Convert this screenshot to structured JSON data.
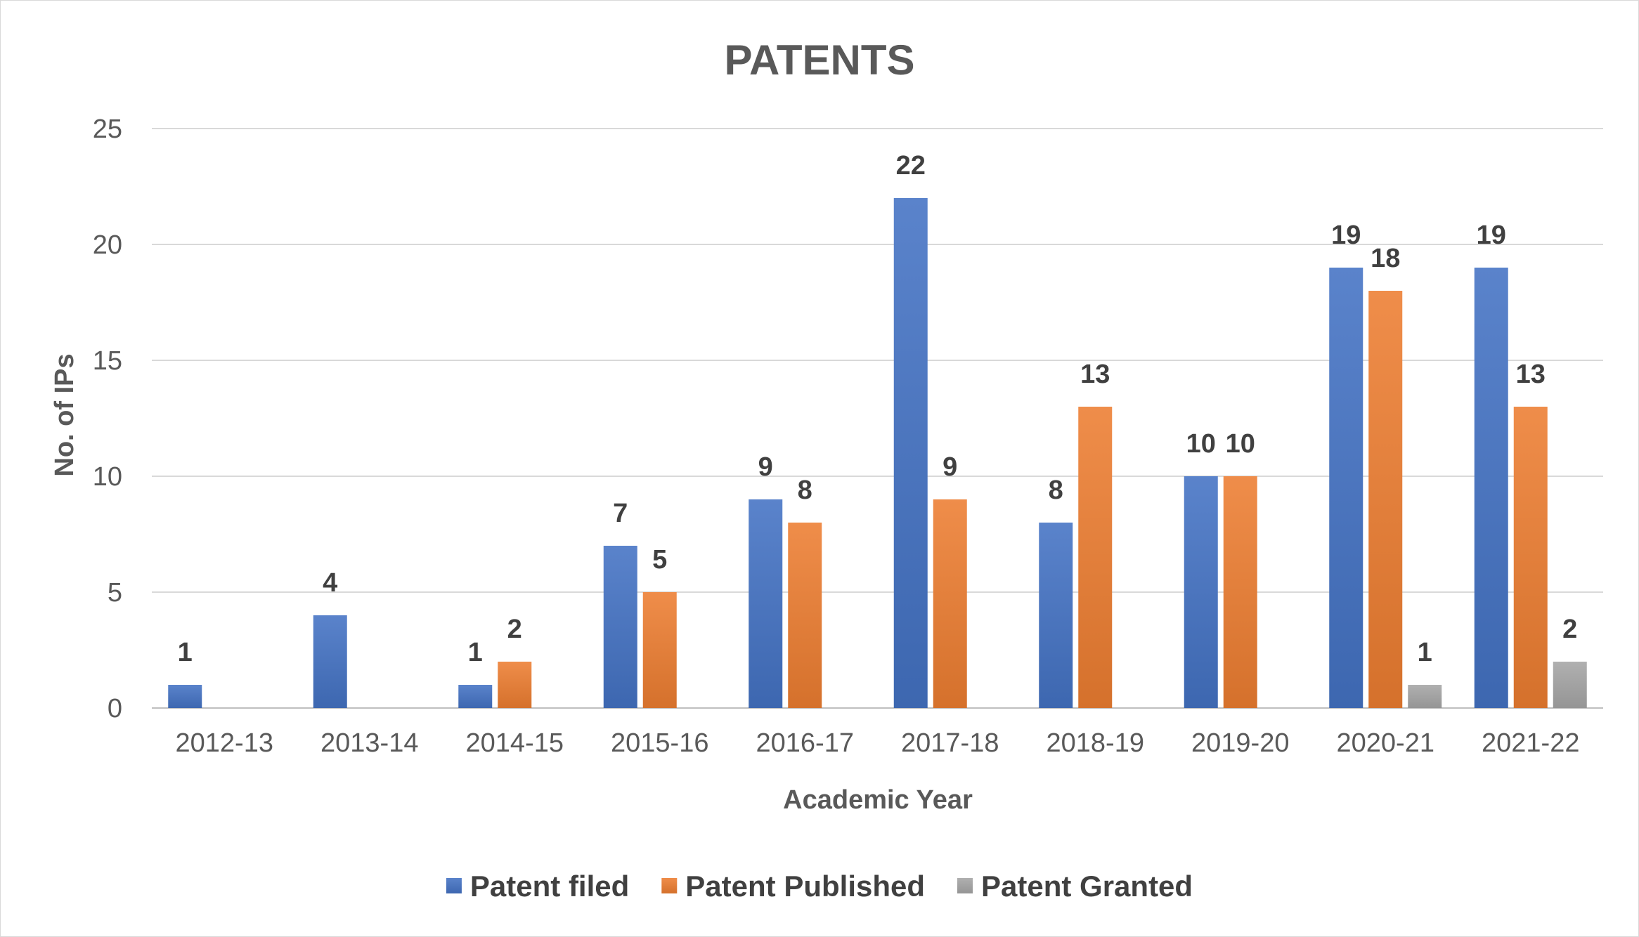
{
  "chart_data": {
    "type": "bar",
    "title": "PATENTS",
    "xlabel": "Academic Year",
    "ylabel": "No. of IPs",
    "ylim": [
      0,
      25
    ],
    "yticks": [
      0,
      5,
      10,
      15,
      20,
      25
    ],
    "grid": true,
    "legend_position": "bottom",
    "categories": [
      "2012-13",
      "2013-14",
      "2014-15",
      "2015-16",
      "2016-17",
      "2017-18",
      "2018-19",
      "2019-20",
      "2020-21",
      "2021-22"
    ],
    "series": [
      {
        "name": "Patent filed",
        "color": "#4472c4",
        "values": [
          1,
          4,
          1,
          7,
          9,
          22,
          8,
          10,
          19,
          19
        ]
      },
      {
        "name": "Patent Published",
        "color": "#ed7d31",
        "values": [
          null,
          null,
          2,
          5,
          8,
          9,
          13,
          10,
          18,
          13
        ]
      },
      {
        "name": "Patent Granted",
        "color": "#a5a5a5",
        "values": [
          null,
          null,
          null,
          null,
          null,
          null,
          null,
          null,
          1,
          2
        ]
      }
    ]
  }
}
